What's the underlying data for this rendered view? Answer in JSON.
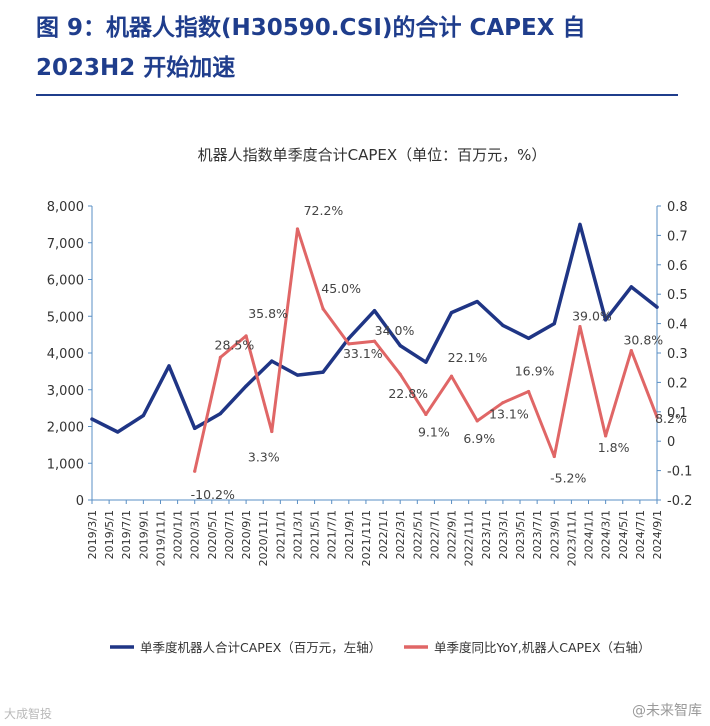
{
  "figure": {
    "title": "图 9：机器人指数(H30590.CSI)的合计 CAPEX 自2023H2 开始加速"
  },
  "chart_data": {
    "type": "line",
    "title": "机器人指数单季度合计CAPEX（单位：百万元，%）",
    "categories": [
      "2019/3/1",
      "2019/5/1",
      "2019/7/1",
      "2019/9/1",
      "2019/11/1",
      "2020/1/1",
      "2020/3/1",
      "2020/5/1",
      "2020/7/1",
      "2020/9/1",
      "2020/11/1",
      "2021/1/1",
      "2021/3/1",
      "2021/5/1",
      "2021/7/1",
      "2021/9/1",
      "2021/11/1",
      "2022/1/1",
      "2022/3/1",
      "2022/5/1",
      "2022/7/1",
      "2022/9/1",
      "2022/11/1",
      "2023/1/1",
      "2023/3/1",
      "2023/5/1",
      "2023/7/1",
      "2023/9/1",
      "2023/11/1",
      "2024/1/1",
      "2024/3/1",
      "2024/5/1",
      "2024/7/1",
      "2024/9/1"
    ],
    "x_tick_labels": [
      "2019/3/1",
      "2019/5/1",
      "2019/7/1",
      "2019/9/1",
      "2019/11/1",
      "2020/1/1",
      "2020/3/1",
      "2020/5/1",
      "2020/7/1",
      "2020/9/1",
      "2020/11/1",
      "2021/1/1",
      "2021/3/1",
      "2021/5/1",
      "2021/7/1",
      "2021/9/1",
      "2021/11/1",
      "2022/1/1",
      "2022/3/1",
      "2022/5/1",
      "2022/7/1",
      "2022/9/1",
      "2022/11/1",
      "2023/1/1",
      "2023/3/1",
      "2023/5/1",
      "2023/7/1",
      "2023/9/1",
      "2023/11/1",
      "2024/1/1",
      "2024/3/1",
      "2024/5/1",
      "2024/7/1",
      "2024/9/1"
    ],
    "y_left": {
      "min": 0,
      "max": 8000,
      "ticks": [
        "0",
        "1,000",
        "2,000",
        "3,000",
        "4,000",
        "5,000",
        "6,000",
        "7,000",
        "8,000"
      ]
    },
    "y_right": {
      "min": -0.2,
      "max": 0.8,
      "ticks": [
        "-0.2",
        "-0.1",
        "0",
        "0.1",
        "0.2",
        "0.3",
        "0.4",
        "0.5",
        "0.6",
        "0.7",
        "0.8"
      ]
    },
    "series": [
      {
        "name": "单季度机器人合计CAPEX（百万元，左轴）",
        "axis": "left",
        "color": "#1f3585",
        "points": [
          {
            "x": "2019/3/1",
            "y": 2200
          },
          {
            "x": "2019/6/1",
            "y": 1850
          },
          {
            "x": "2019/9/1",
            "y": 2300
          },
          {
            "x": "2019/12/1",
            "y": 3650
          },
          {
            "x": "2020/3/1",
            "y": 1950
          },
          {
            "x": "2020/6/1",
            "y": 2350
          },
          {
            "x": "2020/9/1",
            "y": 3100
          },
          {
            "x": "2020/12/1",
            "y": 3780
          },
          {
            "x": "2021/3/1",
            "y": 3400
          },
          {
            "x": "2021/6/1",
            "y": 3480
          },
          {
            "x": "2021/9/1",
            "y": 4400
          },
          {
            "x": "2021/12/1",
            "y": 5150
          },
          {
            "x": "2022/3/1",
            "y": 4200
          },
          {
            "x": "2022/6/1",
            "y": 3750
          },
          {
            "x": "2022/9/1",
            "y": 5100
          },
          {
            "x": "2022/12/1",
            "y": 5400
          },
          {
            "x": "2023/3/1",
            "y": 4750
          },
          {
            "x": "2023/6/1",
            "y": 4400
          },
          {
            "x": "2023/9/1",
            "y": 4800
          },
          {
            "x": "2023/12/1",
            "y": 7500
          },
          {
            "x": "2024/3/1",
            "y": 4900
          },
          {
            "x": "2024/6/1",
            "y": 5800
          },
          {
            "x": "2024/9/1",
            "y": 5250
          }
        ]
      },
      {
        "name": "单季度同比YoY,机器人CAPEX（右轴）",
        "axis": "right",
        "color": "#e06666",
        "points": [
          {
            "x": "2020/3/1",
            "y": -0.102,
            "label": "-10.2%"
          },
          {
            "x": "2020/6/1",
            "y": 0.285,
            "label": "28.5%"
          },
          {
            "x": "2020/9/1",
            "y": 0.358,
            "label": "35.8%"
          },
          {
            "x": "2020/12/1",
            "y": 0.033,
            "label": "3.3%"
          },
          {
            "x": "2021/3/1",
            "y": 0.722,
            "label": "72.2%"
          },
          {
            "x": "2021/6/1",
            "y": 0.45,
            "label": "45.0%"
          },
          {
            "x": "2021/9/1",
            "y": 0.331,
            "label": "33.1%"
          },
          {
            "x": "2021/12/1",
            "y": 0.34,
            "label": "34.0%"
          },
          {
            "x": "2022/3/1",
            "y": 0.228,
            "label": "22.8%"
          },
          {
            "x": "2022/6/1",
            "y": 0.091,
            "label": "9.1%"
          },
          {
            "x": "2022/9/1",
            "y": 0.221,
            "label": "22.1%"
          },
          {
            "x": "2022/12/1",
            "y": 0.069,
            "label": "6.9%"
          },
          {
            "x": "2023/3/1",
            "y": 0.131,
            "label": "13.1%"
          },
          {
            "x": "2023/6/1",
            "y": 0.169,
            "label": "16.9%"
          },
          {
            "x": "2023/9/1",
            "y": -0.052,
            "label": "-5.2%"
          },
          {
            "x": "2023/12/1",
            "y": 0.39,
            "label": "39.0%"
          },
          {
            "x": "2024/3/1",
            "y": 0.018,
            "label": "1.8%"
          },
          {
            "x": "2024/6/1",
            "y": 0.308,
            "label": "30.8%"
          },
          {
            "x": "2024/9/1",
            "y": 0.082,
            "label": "8.2%"
          }
        ]
      }
    ],
    "legend": [
      "单季度机器人合计CAPEX（百万元，左轴）",
      "单季度同比YoY,机器人CAPEX（右轴）"
    ],
    "legend_position": "bottom",
    "grid": false
  },
  "watermarks": {
    "left": "大成智投",
    "right": "@未来智库"
  }
}
